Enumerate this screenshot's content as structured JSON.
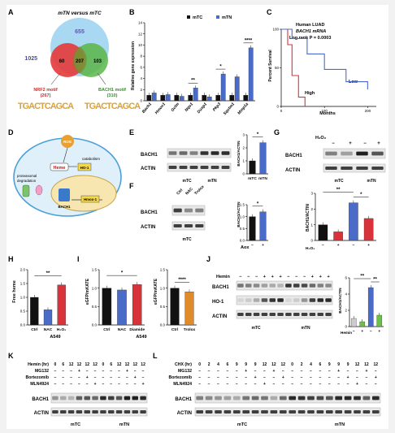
{
  "panels": {
    "A": {
      "letter": "A",
      "title": "mTN versus mTC",
      "top_count": "655",
      "left_count": "1025",
      "overlap_left": "60",
      "overlap_center": "207",
      "overlap_right": "103",
      "motif_left_name": "NRF2 motif",
      "motif_left_count": "(267)",
      "motif_right_name": "BACH1 motif",
      "motif_right_count": "(310)",
      "motif_left_seq": "TGACTCAGCA",
      "motif_right_seq": "TGACTCAGCA"
    },
    "B": {
      "letter": "B",
      "ylabel": "Relative gene expression",
      "legend": [
        "mTC",
        "mTN"
      ],
      "genes": [
        "Bach1",
        "Hmox1",
        "Gclm",
        "Nqo1",
        "Dusp1",
        "Pkp3",
        "Sqstm1",
        "Mmp1a"
      ],
      "yticks": [
        "0",
        "2",
        "4",
        "6",
        "8",
        "10",
        "12",
        "14"
      ],
      "sig": [
        "**",
        "*",
        "****"
      ]
    },
    "C": {
      "letter": "C",
      "line1": "Human LUAD",
      "line2": "BACH1 mRNA",
      "line3": "Log rank P = 0.0003",
      "ylabel": "Percent Survival",
      "xlabel": "Months",
      "high": "High",
      "low": "Low",
      "yticks": [
        "0",
        "50",
        "100"
      ],
      "xticks": [
        "0",
        "100",
        "200"
      ]
    },
    "D": {
      "letter": "D",
      "ros": "ROS",
      "catabolism": "catabolism",
      "heme": "Heme",
      "ho1": "HO-1",
      "proteasomal": "proteasomal",
      "degradation": "degradation",
      "hmox1": "Hmox-1",
      "bach1": "BACH1"
    },
    "E": {
      "letter": "E",
      "blot1": "BACH1",
      "blot2": "ACTIN",
      "groups": [
        "mTC",
        "mTN"
      ],
      "ylabel": "BACH1/ACTIN",
      "yticks": [
        "0",
        "1",
        "2",
        "3"
      ],
      "sig": "*"
    },
    "F": {
      "letter": "F",
      "lanes": [
        "Ctrl",
        "NAC",
        "Trolox"
      ],
      "blot1": "BACH1",
      "blot2": "ACTIN",
      "group": "mTC",
      "ylabel": "BACH1/ACTIN",
      "yticks": [
        "0.0",
        "0.5",
        "1.0",
        "1.5"
      ],
      "xlabel": "Aox",
      "xticks": [
        "−",
        "+"
      ],
      "sig": "*"
    },
    "G": {
      "letter": "G",
      "h2o2": "H₂O₂",
      "lane_marks": [
        "−",
        "+",
        "−",
        "+"
      ],
      "blot1": "BACH1",
      "blot2": "ACTIN",
      "groups": [
        "mTC",
        "mTN"
      ],
      "ylabel": "BACH1/ACTIN",
      "yticks": [
        "0",
        "1",
        "2",
        "3"
      ],
      "sig": [
        "**",
        "*"
      ]
    },
    "H": {
      "letter": "H",
      "ylabel": "Free heme",
      "yticks": [
        "0.0",
        "0.5",
        "1.0",
        "1.5",
        "2.0"
      ],
      "cats": [
        "Ctrl",
        "NAC",
        "H₂O₂"
      ],
      "cell": "A549",
      "sig": "**"
    },
    "I": {
      "letter": "I",
      "ylabel": "eGFP/mKATE",
      "cats1": [
        "Ctrl",
        "NAC",
        "Diamide"
      ],
      "cats2": [
        "Ctrl",
        "Trolox"
      ],
      "yticks": [
        "0.0",
        "0.5",
        "1.0",
        "1.5"
      ],
      "cell": "A549",
      "sig1": "*",
      "sig2": "****"
    },
    "J": {
      "letter": "J",
      "hemin": "Hemin",
      "blot1": "BACH1",
      "blot2": "HO-1",
      "blot3": "ACTIN",
      "groups": [
        "mTC",
        "mTN"
      ],
      "ylabel": "BACH1/ACTIN",
      "yticks": [
        "0",
        "2",
        "4",
        "6"
      ],
      "hemin2": "Hemin",
      "sig": [
        "**",
        "**"
      ]
    },
    "K": {
      "letter": "K",
      "rows": [
        "Hemin (hr)",
        "MG132",
        "Bortezomib",
        "MLN4924"
      ],
      "times": [
        "0",
        "6",
        "12",
        "12",
        "12",
        "12",
        "0",
        "6",
        "12",
        "12",
        "12",
        "12"
      ],
      "blot1": "BACH1",
      "blot2": "ACTIN",
      "groups": [
        "mTC",
        "mTN"
      ]
    },
    "L": {
      "letter": "L",
      "rows": [
        "CHX (hr)",
        "MG132",
        "Bortezomib",
        "MLN4924"
      ],
      "times": [
        "0",
        "2",
        "4",
        "6",
        "9",
        "9",
        "9",
        "12",
        "12",
        "12",
        "0",
        "2",
        "4",
        "6",
        "9",
        "9",
        "9",
        "12",
        "12",
        "12"
      ],
      "blot1": "BACH1",
      "blot2": "ACTIN",
      "groups": [
        "mTC",
        "mTN"
      ]
    }
  },
  "colors": {
    "mTC": "#111111",
    "mTN": "#4a6cc8",
    "red": "#d8333a",
    "green": "#6fbf4b",
    "purple": "#7a4fc4"
  },
  "chart_data": [
    {
      "panel": "B",
      "type": "bar",
      "categories": [
        "Bach1",
        "Hmox1",
        "Gclm",
        "Nqo1",
        "Dusp1",
        "Pkp3",
        "Sqstm1",
        "Mmp1a"
      ],
      "series": [
        {
          "name": "mTC",
          "values": [
            1,
            1,
            1,
            1,
            1,
            1,
            1,
            1
          ]
        },
        {
          "name": "mTN",
          "values": [
            1.4,
            1.1,
            0.8,
            2.3,
            0.7,
            4.8,
            4.3,
            9.5
          ]
        }
      ],
      "ylabel": "Relative gene expression",
      "ylim": [
        0,
        14
      ]
    },
    {
      "panel": "C",
      "type": "line",
      "series": [
        {
          "name": "High",
          "x": [
            0,
            15,
            25,
            40,
            55
          ],
          "y": [
            100,
            80,
            40,
            12,
            0
          ]
        },
        {
          "name": "Low",
          "x": [
            0,
            25,
            60,
            100,
            150,
            200
          ],
          "y": [
            100,
            88,
            68,
            48,
            32,
            22
          ]
        }
      ],
      "xlabel": "Months",
      "ylabel": "Percent Survival",
      "xlim": [
        0,
        220
      ],
      "ylim": [
        0,
        100
      ]
    },
    {
      "panel": "E",
      "type": "bar",
      "categories": [
        "mTC",
        "mTN"
      ],
      "values": [
        1.0,
        2.4
      ],
      "ylabel": "BACH1/ACTIN",
      "ylim": [
        0,
        3
      ]
    },
    {
      "panel": "F",
      "type": "bar",
      "categories": [
        "−",
        "+"
      ],
      "values": [
        1.0,
        1.2
      ],
      "xlabel": "Aox",
      "ylabel": "BACH1/ACTIN",
      "ylim": [
        0,
        1.5
      ]
    },
    {
      "panel": "G",
      "type": "bar",
      "categories": [
        "mTC −",
        "mTC +",
        "mTN −",
        "mTN +"
      ],
      "values": [
        1.0,
        0.55,
        2.4,
        1.4
      ],
      "ylabel": "BACH1/ACTIN",
      "ylim": [
        0,
        3
      ]
    },
    {
      "panel": "H",
      "type": "bar",
      "categories": [
        "Ctrl",
        "NAC",
        "H₂O₂"
      ],
      "values": [
        1.0,
        0.55,
        1.45
      ],
      "ylabel": "Free heme",
      "ylim": [
        0,
        2
      ]
    },
    {
      "panel": "I-left",
      "type": "bar",
      "categories": [
        "Ctrl",
        "NAC",
        "Diamide"
      ],
      "values": [
        1.0,
        0.95,
        1.1
      ],
      "ylabel": "eGFP/mKATE",
      "ylim": [
        0,
        1.5
      ]
    },
    {
      "panel": "I-right",
      "type": "bar",
      "categories": [
        "Ctrl",
        "Trolox"
      ],
      "values": [
        1.0,
        0.9
      ],
      "ylabel": "eGFP/mKATE",
      "ylim": [
        0,
        1.5
      ]
    },
    {
      "panel": "J",
      "type": "bar",
      "categories": [
        "mTC −",
        "mTC +",
        "mTN −",
        "mTN +"
      ],
      "values": [
        1.0,
        0.6,
        4.8,
        1.4
      ],
      "ylabel": "BACH1/ACTIN",
      "ylim": [
        0,
        6
      ]
    }
  ]
}
